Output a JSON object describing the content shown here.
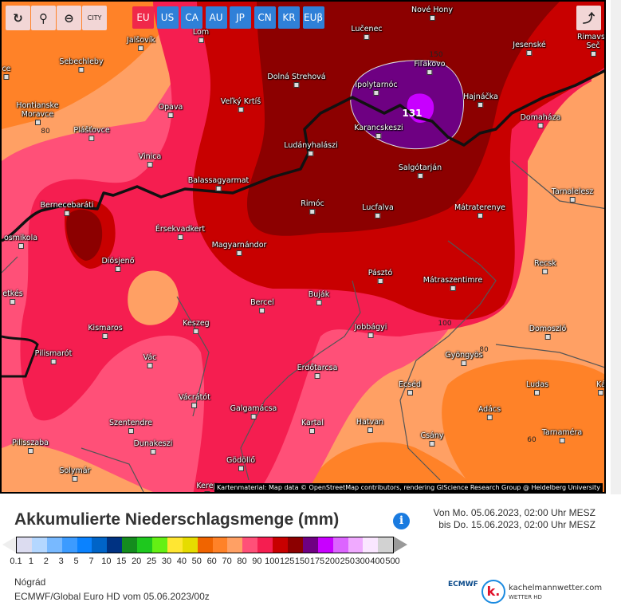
{
  "toolbar": {
    "tools": [
      {
        "name": "refresh-icon",
        "glyph": "↻"
      },
      {
        "name": "location-pin-icon",
        "glyph": "⚲"
      },
      {
        "name": "zoom-out-icon",
        "glyph": "⊖"
      },
      {
        "name": "city-labels-toggle",
        "label": "CITY"
      }
    ],
    "regions": [
      "EU",
      "US",
      "CA",
      "AU",
      "JP",
      "CN",
      "KR",
      "EUβ"
    ],
    "active_region": "EU",
    "share_icon": "share-icon"
  },
  "map": {
    "cities": [
      "Nové Hony",
      "Lom",
      "Jalšovík",
      "Lučenec",
      "Jesenské",
      "Rimavsk Seč",
      "Sebechleby",
      "Fiľakovo",
      "Dolná Strehová",
      "Ipolytarnóc",
      "Hontianske Moravce",
      "Opava",
      "Veľký Krtíš",
      "Hajnáčka",
      "Domaháza",
      "Plášťovce",
      "Karancskeszi",
      "Ludányhalászi",
      "Vinica",
      "Salgótarján",
      "Balassagyarmat",
      "Tarnalelesz",
      "Bernecebaráti",
      "Rimóc",
      "Lucfalva",
      "Mátraterenye",
      "Érsekvadkert",
      "Magyarnándor",
      "Diósjenő",
      "Recsk",
      "Pásztó",
      "Mátraszentimre",
      "Bercel",
      "Buják",
      "Keszeg",
      "Kismaros",
      "Jobbágyi",
      "Domoszló",
      "Vác",
      "Gyöngyös",
      "Pilismarót",
      "Erdőtarcsa",
      "Ecséd",
      "Ludas",
      "Vácrátót",
      "Galgamácsa",
      "Adács",
      "Szentendre",
      "Kartal",
      "Hatvan",
      "Dunakeszi",
      "Csány",
      "Tarnaméra",
      "Pilisszaba",
      "Gödöllő",
      "Solymár",
      "Kerep",
      "ce",
      "osmikola",
      "etkés",
      "Ká"
    ],
    "contour_labels": [
      "80",
      "150",
      "131",
      "100",
      "80",
      "60"
    ],
    "attribution": "Kartenmaterial: Map data © OpenStreetMap contributors, rendering GIScience Research Group @ Heidelberg University"
  },
  "legend": {
    "title": "Akkumulierte Niederschlagsmenge (mm)",
    "info_icon": "i",
    "period_from": "Von Mo. 05.06.2023, 02:00 Uhr MESZ",
    "period_to": "bis Do. 15.06.2023, 02:00 Uhr MESZ",
    "labels": [
      "0.1",
      "1",
      "2",
      "3",
      "5",
      "7",
      "10",
      "15",
      "20",
      "25",
      "30",
      "40",
      "50",
      "60",
      "70",
      "80",
      "90",
      "100",
      "125",
      "150",
      "175",
      "200",
      "250",
      "300",
      "400",
      "500"
    ],
    "colors": [
      "#dcdcf0",
      "#b4d7ff",
      "#78b9ff",
      "#3c9bff",
      "#0a82ff",
      "#0064c8",
      "#003282",
      "#148c1e",
      "#1ec81e",
      "#64f014",
      "#ffe632",
      "#e6dc00",
      "#f06400",
      "#ff8228",
      "#ffa064",
      "#ff5078",
      "#f51e50",
      "#c80000",
      "#8c0000",
      "#6e0082",
      "#c800ff",
      "#dc64ff",
      "#f0aaff",
      "#fae6ff",
      "#d2d2d2"
    ],
    "below_color": "#eeeeee",
    "above_color": "#999999"
  },
  "footer": {
    "region": "Nógrád",
    "model": "ECMWF/Global Euro HD vom 05.06.2023/00z",
    "ecmwf": "ECMWF",
    "brand": "kachelmannwetter.com",
    "brand_sub": "WETTER HD",
    "brand_letter": "k."
  }
}
